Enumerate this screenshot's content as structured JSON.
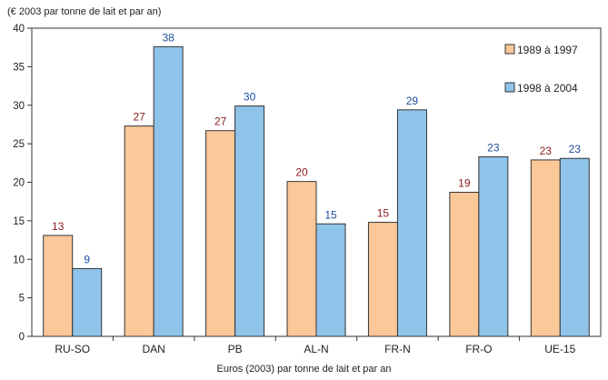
{
  "chart_data": {
    "type": "bar",
    "title": "",
    "ylabel": "(€ 2003 par tonne de lait et par an)",
    "xlabel": "Euros (2003) par tonne de lait et par an",
    "ylim": [
      0,
      40
    ],
    "yticks": [
      0,
      5,
      10,
      15,
      20,
      25,
      30,
      35,
      40
    ],
    "grid": false,
    "legend_position": "top-right",
    "categories": [
      "RU-SO",
      "DAN",
      "PB",
      "AL-N",
      "FR-N",
      "FR-O",
      "UE-15"
    ],
    "series": [
      {
        "name": "1989 à 1997",
        "values": [
          13.1,
          27.3,
          26.7,
          20.1,
          14.8,
          18.7,
          22.9
        ],
        "labels": [
          "13",
          "27",
          "27",
          "20",
          "15",
          "19",
          "23"
        ],
        "color": "#fbc89a",
        "label_color": "#8b1a1a"
      },
      {
        "name": "1998 à 2004",
        "values": [
          8.8,
          37.6,
          29.9,
          14.6,
          29.4,
          23.3,
          23.1
        ],
        "labels": [
          "9",
          "38",
          "30",
          "15",
          "29",
          "23",
          "23"
        ],
        "color": "#8fc3ea",
        "label_color": "#1f4fa0"
      }
    ]
  }
}
